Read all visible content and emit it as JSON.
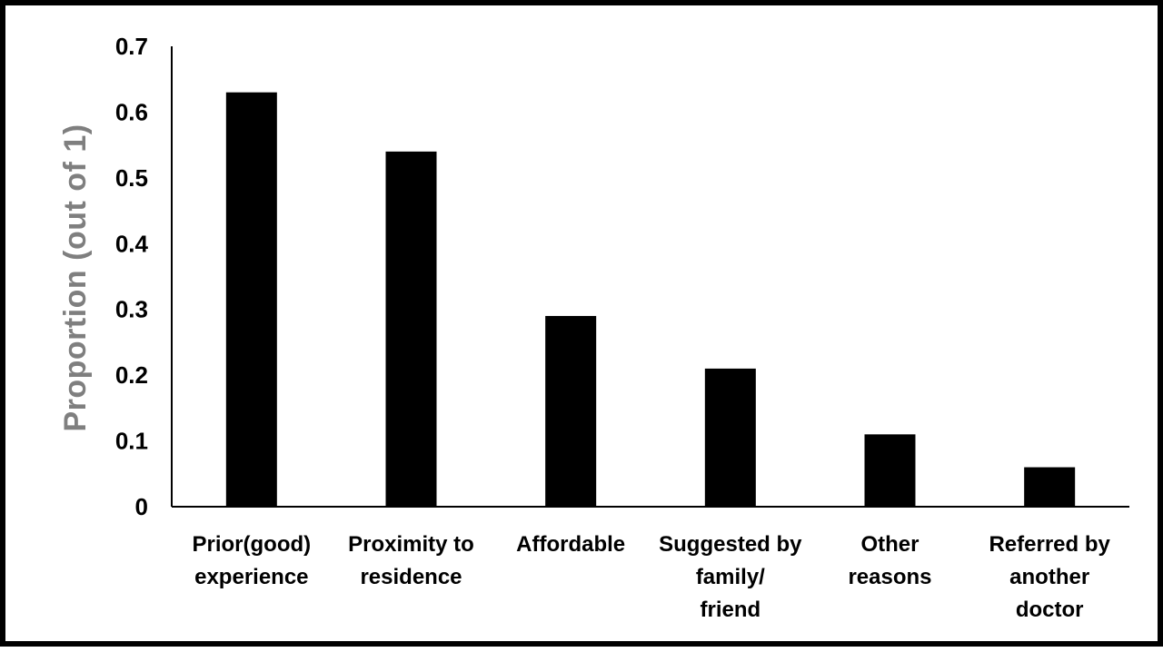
{
  "chart_data": {
    "type": "bar",
    "title": "",
    "xlabel": "",
    "ylabel": "Proportion (out of 1)",
    "ylim": [
      0,
      0.7
    ],
    "yticks": [
      "0",
      "0.1",
      "0.2",
      "0.3",
      "0.4",
      "0.5",
      "0.6",
      "0.7"
    ],
    "categories": [
      [
        "Prior(good)",
        "experience"
      ],
      [
        "Proximity to",
        "residence"
      ],
      [
        "Affordable"
      ],
      [
        "Suggested by",
        "family/",
        "friend"
      ],
      [
        "Other",
        "reasons"
      ],
      [
        "Referred by",
        "another",
        "doctor"
      ]
    ],
    "values": [
      0.63,
      0.54,
      0.29,
      0.21,
      0.11,
      0.06
    ],
    "grid": false,
    "legend": "none",
    "colors": {
      "bar": "#000000",
      "axis": "#000000",
      "ylabel": "#7f7f7f"
    }
  }
}
